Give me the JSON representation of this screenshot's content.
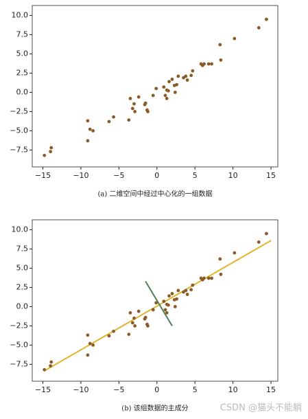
{
  "chart_data": [
    {
      "type": "scatter",
      "caption": "(a) 二维空间中经过中心化的一组数据",
      "color": "#8c5a26",
      "x": [
        -14.8,
        -14.0,
        -13.9,
        -9.1,
        -9.1,
        -8.8,
        -8.4,
        -6.3,
        -5.7,
        -3.7,
        -3.5,
        -3.2,
        -3.0,
        -2.9,
        -2.4,
        -1.6,
        -1.5,
        -1.3,
        -1.2,
        -0.5,
        -0.1,
        0.9,
        1.1,
        1.3,
        1.3,
        1.5,
        1.6,
        2.0,
        2.3,
        2.4,
        2.6,
        2.8,
        3.5,
        3.8,
        4.0,
        4.5,
        4.7,
        5.8,
        6.0,
        6.2,
        6.8,
        7.2,
        8.3,
        8.4,
        10.2,
        13.4,
        14.4
      ],
      "y": [
        -8.2,
        -7.7,
        -7.2,
        -3.7,
        -6.3,
        -4.8,
        -5.0,
        -3.8,
        -3.2,
        -3.6,
        -0.8,
        -2.1,
        -1.5,
        -2.5,
        -0.6,
        -1.6,
        -1.4,
        -2.3,
        -2.5,
        -0.4,
        0.5,
        0.7,
        -0.4,
        0.3,
        -0.8,
        0.2,
        1.4,
        1.7,
        0.9,
        0.0,
        1.0,
        2.1,
        1.9,
        2.1,
        1.6,
        2.2,
        2.8,
        3.7,
        3.5,
        3.7,
        3.7,
        3.7,
        6.2,
        4.2,
        7.0,
        8.4,
        9.5
      ],
      "xlim": [
        -16.4,
        15.9
      ],
      "ylim": [
        -9.7,
        11.3
      ],
      "xticks": [
        {
          "value": -15,
          "label": "−15"
        },
        {
          "value": -10,
          "label": "−10"
        },
        {
          "value": -5,
          "label": "−5"
        },
        0,
        5,
        10,
        15
      ],
      "yticks": [
        {
          "value": -7.5,
          "label": "−7.5"
        },
        {
          "value": -5,
          "label": "−5.0"
        },
        {
          "value": -2.5,
          "label": "−2.5"
        },
        {
          "value": 0,
          "label": "0.0"
        },
        2.5,
        {
          "value": 5,
          "label": "5.0"
        },
        7.5,
        {
          "value": 10,
          "label": "10.0"
        }
      ]
    },
    {
      "type": "scatter",
      "caption": "(b) 该组数据的主成分",
      "color": "#8c5a26",
      "x": [
        -14.8,
        -14.0,
        -13.9,
        -9.1,
        -9.1,
        -8.8,
        -8.4,
        -6.3,
        -5.7,
        -3.7,
        -3.5,
        -3.2,
        -3.0,
        -2.9,
        -2.4,
        -1.6,
        -1.5,
        -1.3,
        -1.2,
        -0.5,
        -0.1,
        0.9,
        1.1,
        1.3,
        1.3,
        1.5,
        1.6,
        2.0,
        2.3,
        2.4,
        2.6,
        2.8,
        3.5,
        3.8,
        4.0,
        4.5,
        4.7,
        5.8,
        6.0,
        6.2,
        6.8,
        7.2,
        8.3,
        8.4,
        10.2,
        13.4,
        14.4
      ],
      "y": [
        -8.2,
        -7.7,
        -7.2,
        -3.7,
        -6.3,
        -4.8,
        -5.0,
        -3.8,
        -3.2,
        -3.6,
        -0.8,
        -2.1,
        -1.5,
        -2.5,
        -0.6,
        -1.6,
        -1.4,
        -2.3,
        -2.5,
        -0.4,
        0.5,
        0.7,
        -0.4,
        0.3,
        -0.8,
        0.2,
        1.4,
        1.7,
        0.9,
        0.0,
        1.0,
        2.1,
        1.9,
        2.1,
        1.6,
        2.2,
        2.8,
        3.7,
        3.5,
        3.7,
        3.7,
        3.7,
        6.2,
        4.2,
        7.0,
        8.4,
        9.5
      ],
      "lines": [
        {
          "color": "#e2b32c",
          "x": [
            -14.9,
            15.0
          ],
          "y": [
            -8.4,
            8.6
          ]
        },
        {
          "color": "#4f7f5c",
          "x": [
            -1.5,
            2.0
          ],
          "y": [
            3.3,
            -2.5
          ]
        }
      ],
      "xlim": [
        -16.4,
        15.9
      ],
      "ylim": [
        -9.7,
        11.3
      ],
      "xticks": [
        {
          "value": -15,
          "label": "−15"
        },
        {
          "value": -10,
          "label": "−10"
        },
        {
          "value": -5,
          "label": "−5"
        },
        0,
        5,
        10,
        15
      ],
      "yticks": [
        {
          "value": -7.5,
          "label": "−7.5"
        },
        {
          "value": -5,
          "label": "−5.0"
        },
        {
          "value": -2.5,
          "label": "−2.5"
        },
        {
          "value": 0,
          "label": "0.0"
        },
        2.5,
        {
          "value": 5,
          "label": "5.0"
        },
        7.5,
        {
          "value": 10,
          "label": "10.0"
        }
      ]
    }
  ],
  "watermark": "CSDN @猫头不能躺"
}
